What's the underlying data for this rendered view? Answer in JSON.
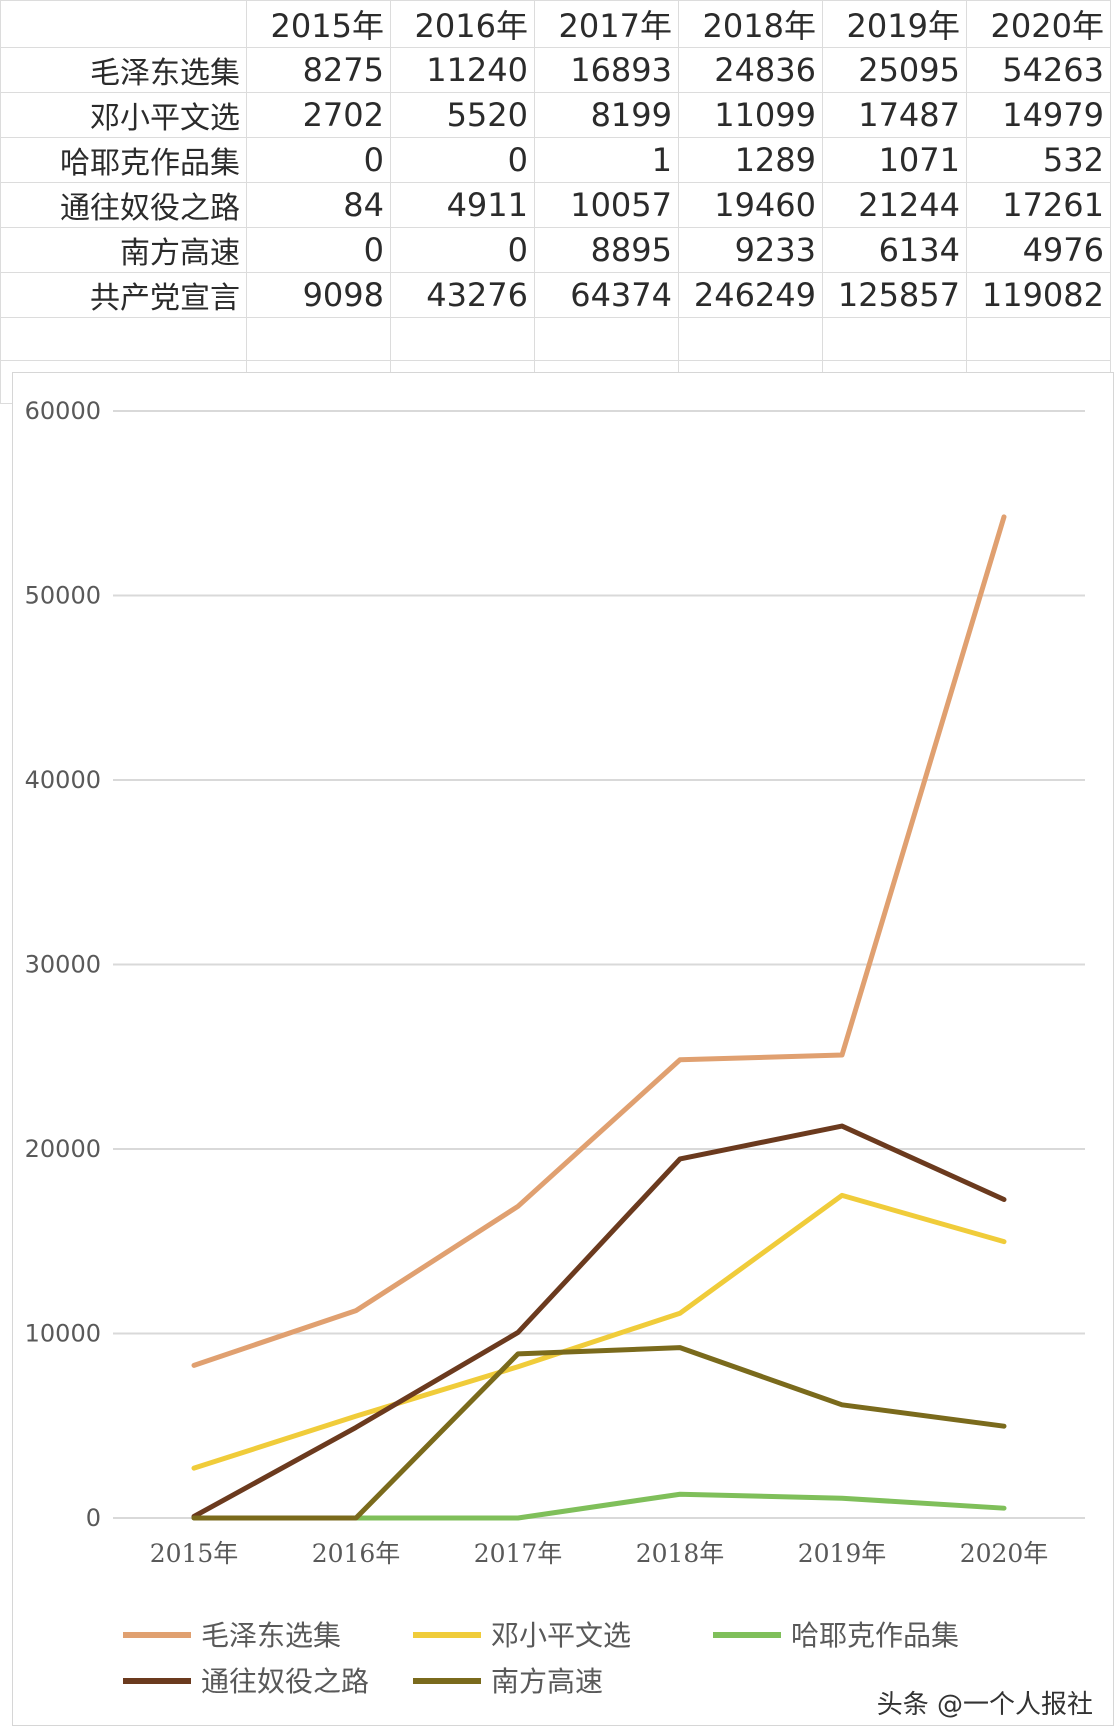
{
  "table": {
    "headers": [
      "",
      "2015年",
      "2016年",
      "2017年",
      "2018年",
      "2019年",
      "2020年"
    ],
    "rows": [
      {
        "label": "毛泽东选集",
        "values": [
          "8275",
          "11240",
          "16893",
          "24836",
          "25095",
          "54263"
        ]
      },
      {
        "label": "邓小平文选",
        "values": [
          "2702",
          "5520",
          "8199",
          "11099",
          "17487",
          "14979"
        ]
      },
      {
        "label": "哈耶克作品集",
        "values": [
          "0",
          "0",
          "1",
          "1289",
          "1071",
          "532"
        ]
      },
      {
        "label": "通往奴役之路",
        "values": [
          "84",
          "4911",
          "10057",
          "19460",
          "21244",
          "17261"
        ]
      },
      {
        "label": "南方高速",
        "values": [
          "0",
          "0",
          "8895",
          "9233",
          "6134",
          "4976"
        ]
      },
      {
        "label": "共产党宣言",
        "values": [
          "9098",
          "43276",
          "64374",
          "246249",
          "125857",
          "119082"
        ]
      }
    ]
  },
  "chart_data": {
    "type": "line",
    "title": "",
    "xlabel": "",
    "ylabel": "",
    "categories": [
      "2015年",
      "2016年",
      "2017年",
      "2018年",
      "2019年",
      "2020年"
    ],
    "ylim": [
      0,
      60000
    ],
    "yticks": [
      "0",
      "10000",
      "20000",
      "30000",
      "40000",
      "50000",
      "60000"
    ],
    "grid": "horizontal",
    "legend_position": "bottom",
    "series": [
      {
        "name": "毛泽东选集",
        "color": "#e0a070",
        "values": [
          8275,
          11240,
          16893,
          24836,
          25095,
          54263
        ]
      },
      {
        "name": "邓小平文选",
        "color": "#f0cc3a",
        "values": [
          2702,
          5520,
          8199,
          11099,
          17487,
          14979
        ]
      },
      {
        "name": "哈耶克作品集",
        "color": "#7fbf5a",
        "values": [
          0,
          0,
          1,
          1289,
          1071,
          532
        ]
      },
      {
        "name": "通往奴役之路",
        "color": "#6b3a1e",
        "values": [
          84,
          4911,
          10057,
          19460,
          21244,
          17261
        ]
      },
      {
        "name": "南方高速",
        "color": "#7a6a1c",
        "values": [
          0,
          0,
          8895,
          9233,
          6134,
          4976
        ]
      }
    ]
  },
  "watermark": "头条 @一个人报社"
}
